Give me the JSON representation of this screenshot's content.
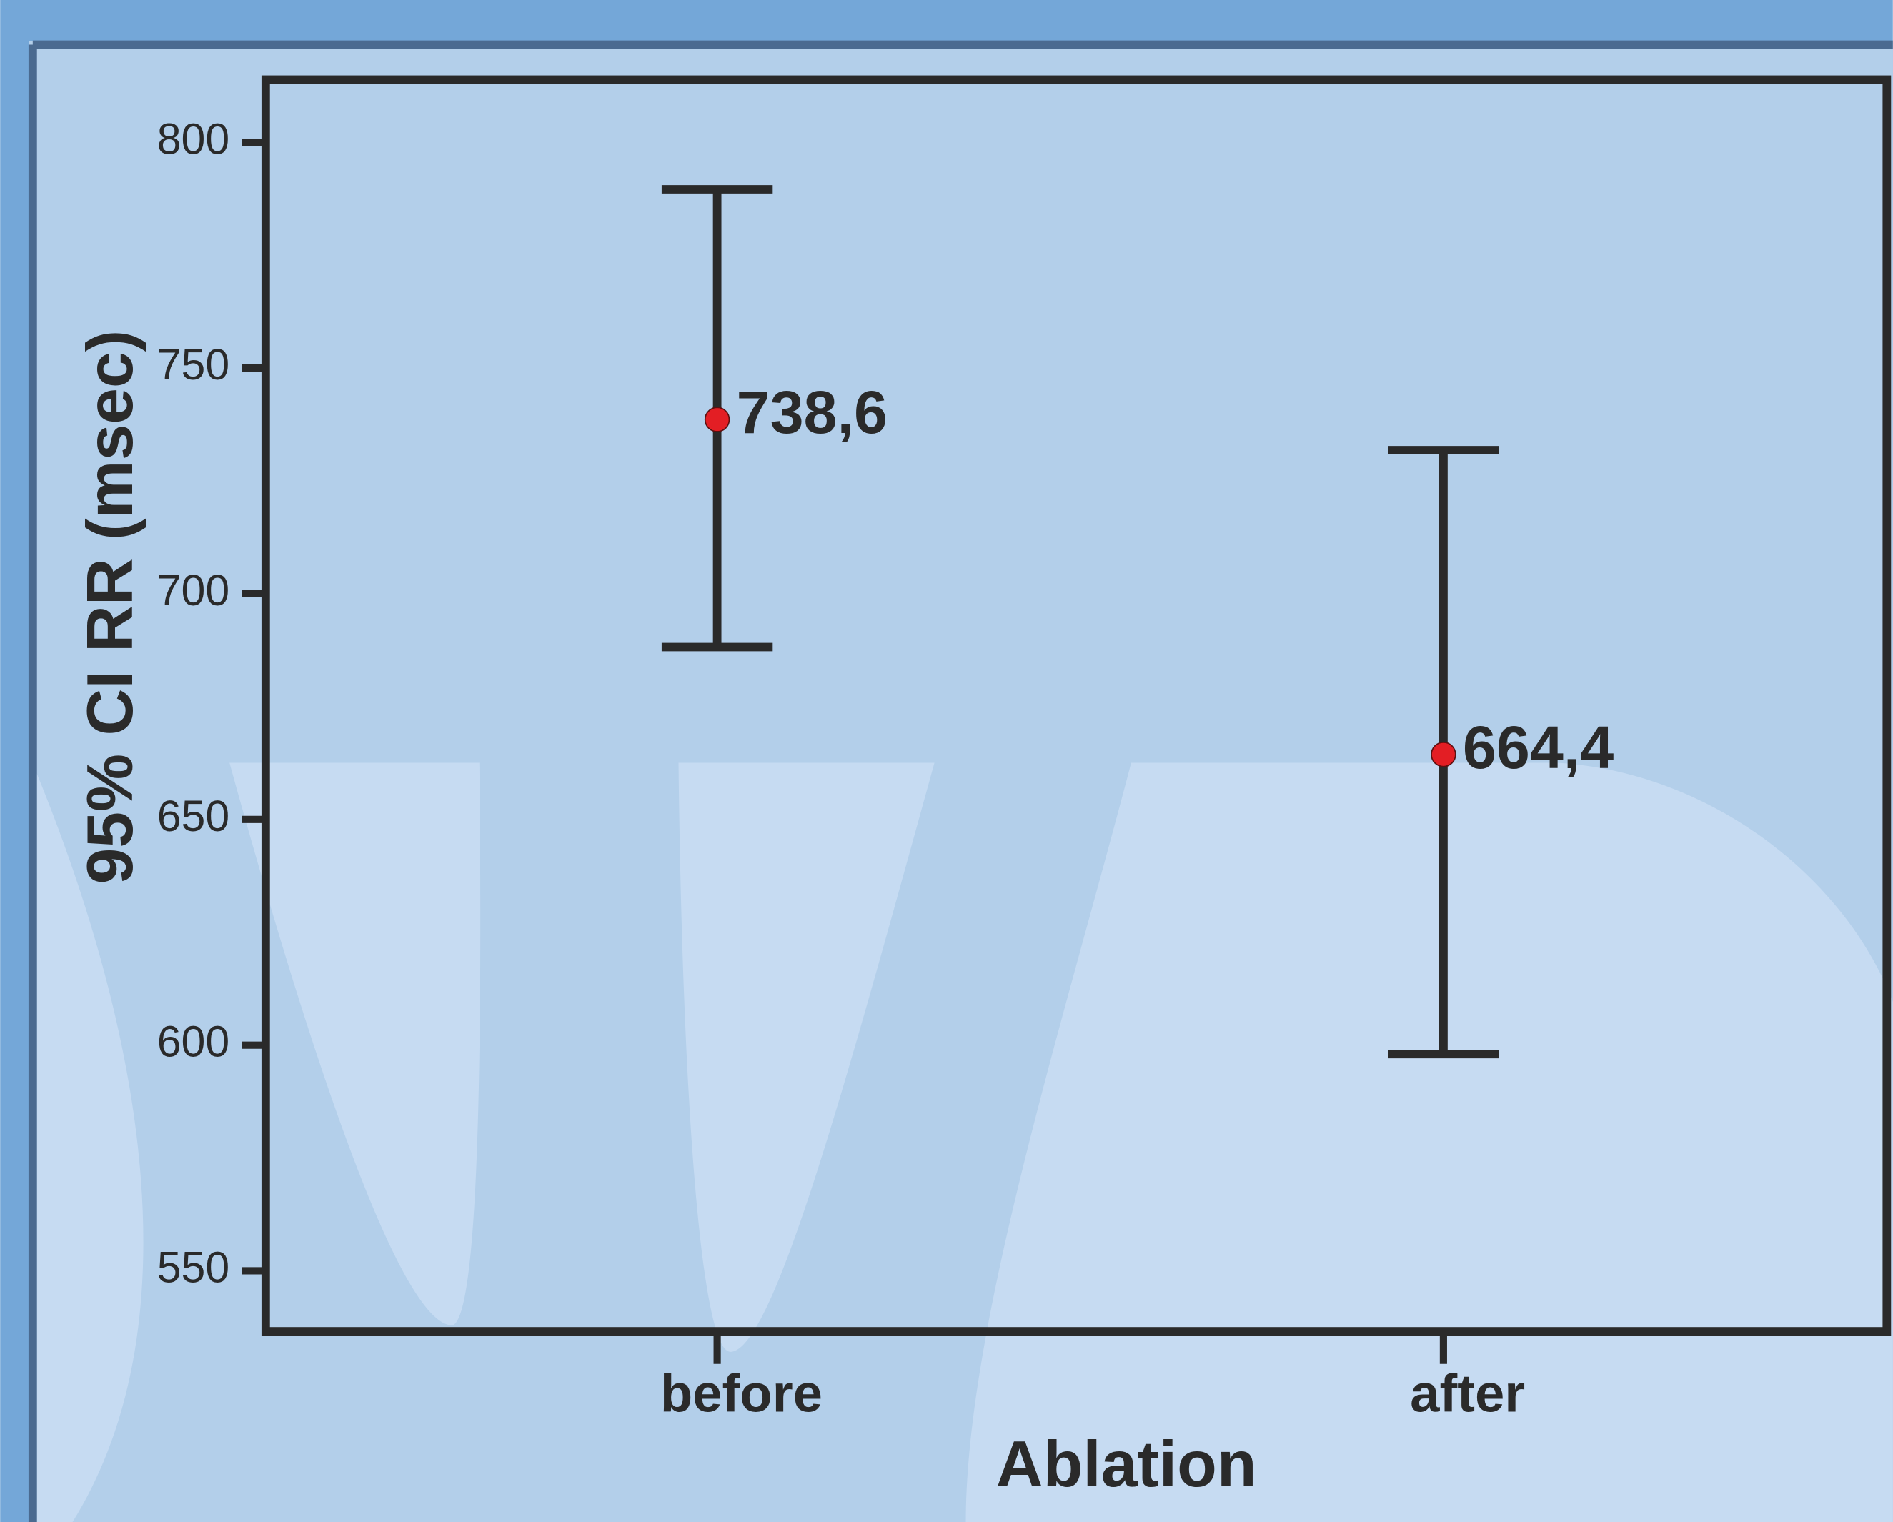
{
  "chart_data": {
    "type": "errorbar",
    "x_label": "Ablation",
    "y_label": "95% CI RR (msec)",
    "categories": [
      "before",
      "after"
    ],
    "values": [
      738.6,
      664.4
    ],
    "value_labels": [
      "738,6",
      "664,4"
    ],
    "error_low": [
      688.2,
      598.0
    ],
    "error_high": [
      789.6,
      731.8
    ],
    "color": "#e31e24",
    "ylim": [
      536.6,
      813.9
    ],
    "yticks": [
      550,
      600,
      650,
      700,
      750,
      800
    ]
  }
}
